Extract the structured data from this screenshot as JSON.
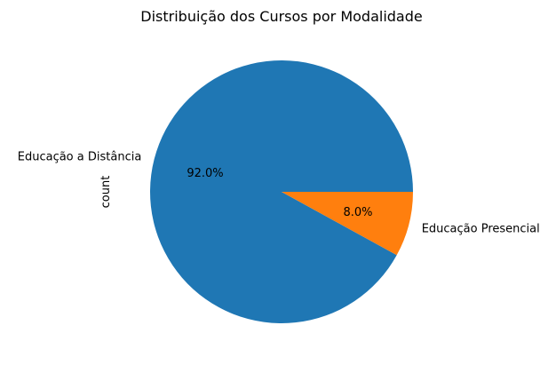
{
  "chart_data": {
    "type": "pie",
    "title": "Distribuição dos Cursos por Modalidade",
    "ylabel": "count",
    "labels": [
      "Educação a Distância",
      "Educação Presencial"
    ],
    "values": [
      92.0,
      8.0
    ],
    "percent_labels": [
      "92.0%",
      "8.0%"
    ],
    "colors": [
      "#1f77b4",
      "#ff7f0e"
    ],
    "start_angle_deg": 0,
    "direction": "counterclockwise",
    "legend": "none"
  }
}
